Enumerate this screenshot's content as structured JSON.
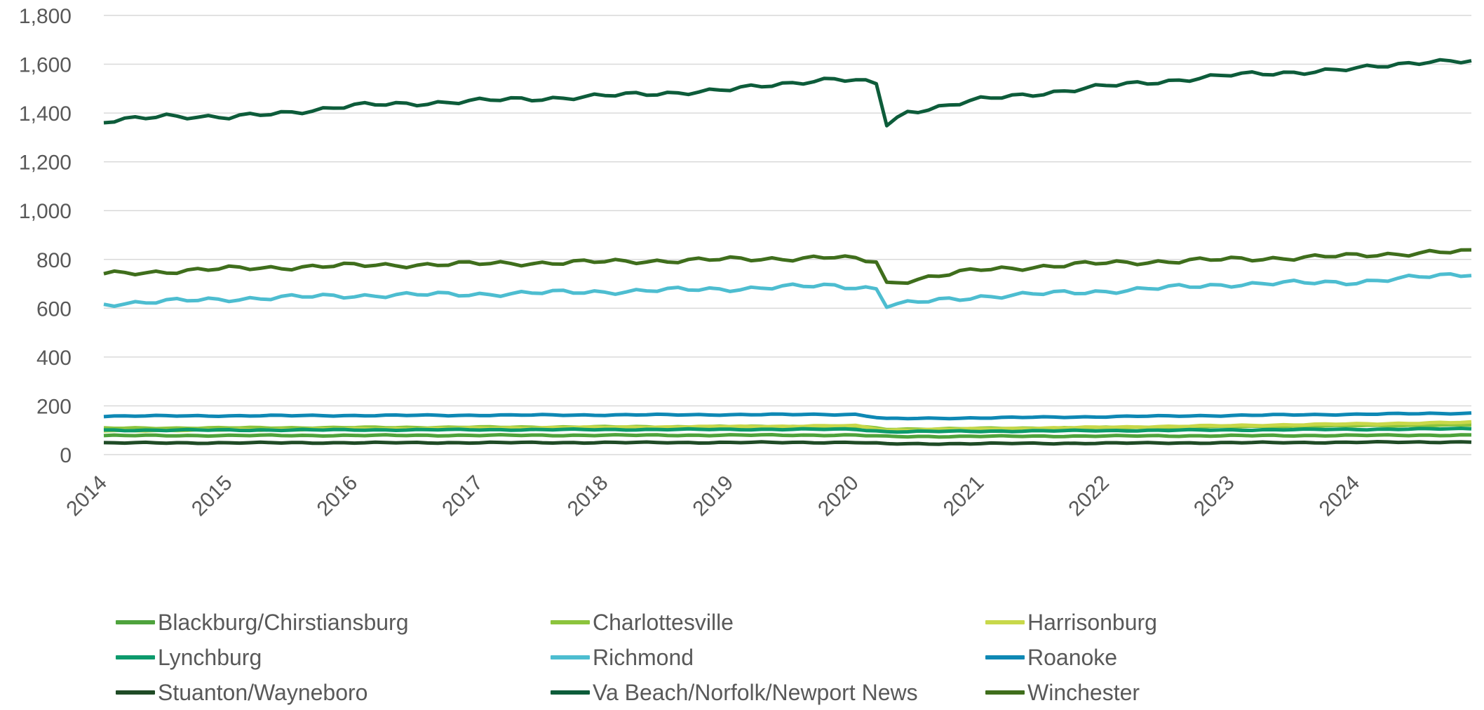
{
  "chart_data": {
    "type": "line",
    "title": "",
    "xlabel": "",
    "ylabel": "",
    "ylim": [
      0,
      1800
    ],
    "yticks": [
      0,
      200,
      400,
      600,
      800,
      1000,
      1200,
      1400,
      1600,
      1800
    ],
    "ytick_labels": [
      "0",
      "200",
      "400",
      "600",
      "800",
      "1,000",
      "1,200",
      "1,400",
      "1,600",
      "1,800"
    ],
    "xlim": [
      "2014-01",
      "2024-12"
    ],
    "xtick_labels": [
      "2014",
      "2015",
      "2016",
      "2017",
      "2018",
      "2019",
      "2020",
      "2021",
      "2022",
      "2023",
      "2024"
    ],
    "frequency": "monthly",
    "grid": "horizontal",
    "legend_position": "bottom",
    "series": [
      {
        "name": "Blackburg/Chirstiansburg",
        "color": "#4ea33c",
        "anchors": [
          [
            0,
            78
          ],
          [
            72,
            80
          ],
          [
            75,
            74
          ],
          [
            131,
            80
          ]
        ]
      },
      {
        "name": "Charlottesville",
        "color": "#8cc43c",
        "anchors": [
          [
            0,
            108
          ],
          [
            72,
            116
          ],
          [
            75,
            104
          ],
          [
            131,
            122
          ]
        ]
      },
      {
        "name": "Harrisonburg",
        "color": "#c8d84a",
        "anchors": [
          [
            0,
            98
          ],
          [
            72,
            118
          ],
          [
            75,
            100
          ],
          [
            131,
            132
          ]
        ]
      },
      {
        "name": "Lynchburg",
        "color": "#0c9a6c",
        "anchors": [
          [
            0,
            100
          ],
          [
            72,
            104
          ],
          [
            75,
            94
          ],
          [
            131,
            106
          ]
        ]
      },
      {
        "name": "Richmond",
        "color": "#4dbdd0",
        "anchors": [
          [
            0,
            618
          ],
          [
            12,
            638
          ],
          [
            24,
            652
          ],
          [
            36,
            658
          ],
          [
            48,
            668
          ],
          [
            60,
            680
          ],
          [
            70,
            693
          ],
          [
            74,
            682
          ],
          [
            75,
            612
          ],
          [
            84,
            648
          ],
          [
            96,
            670
          ],
          [
            108,
            698
          ],
          [
            120,
            708
          ],
          [
            131,
            742
          ]
        ]
      },
      {
        "name": "Roanoke",
        "color": "#0e88b4",
        "anchors": [
          [
            0,
            158
          ],
          [
            72,
            165
          ],
          [
            75,
            147
          ],
          [
            131,
            170
          ]
        ]
      },
      {
        "name": "Stuanton/Wayneboro",
        "color": "#1f4b26",
        "anchors": [
          [
            0,
            48
          ],
          [
            72,
            50
          ],
          [
            75,
            44
          ],
          [
            131,
            52
          ]
        ]
      },
      {
        "name": "Va Beach/Norfolk/Newport News",
        "color": "#0d5c3a",
        "anchors": [
          [
            0,
            1360
          ],
          [
            6,
            1392
          ],
          [
            12,
            1380
          ],
          [
            24,
            1430
          ],
          [
            36,
            1450
          ],
          [
            48,
            1470
          ],
          [
            60,
            1495
          ],
          [
            67,
            1530
          ],
          [
            70,
            1540
          ],
          [
            74,
            1520
          ],
          [
            75,
            1352
          ],
          [
            77,
            1405
          ],
          [
            84,
            1455
          ],
          [
            96,
            1510
          ],
          [
            108,
            1555
          ],
          [
            120,
            1580
          ],
          [
            127,
            1615
          ],
          [
            131,
            1610
          ]
        ]
      },
      {
        "name": "Winchester",
        "color": "#3f6e1c",
        "anchors": [
          [
            0,
            740
          ],
          [
            12,
            762
          ],
          [
            24,
            775
          ],
          [
            36,
            782
          ],
          [
            48,
            790
          ],
          [
            60,
            800
          ],
          [
            70,
            808
          ],
          [
            74,
            792
          ],
          [
            75,
            702
          ],
          [
            84,
            758
          ],
          [
            96,
            785
          ],
          [
            108,
            800
          ],
          [
            120,
            815
          ],
          [
            127,
            830
          ],
          [
            131,
            830
          ]
        ]
      }
    ]
  }
}
